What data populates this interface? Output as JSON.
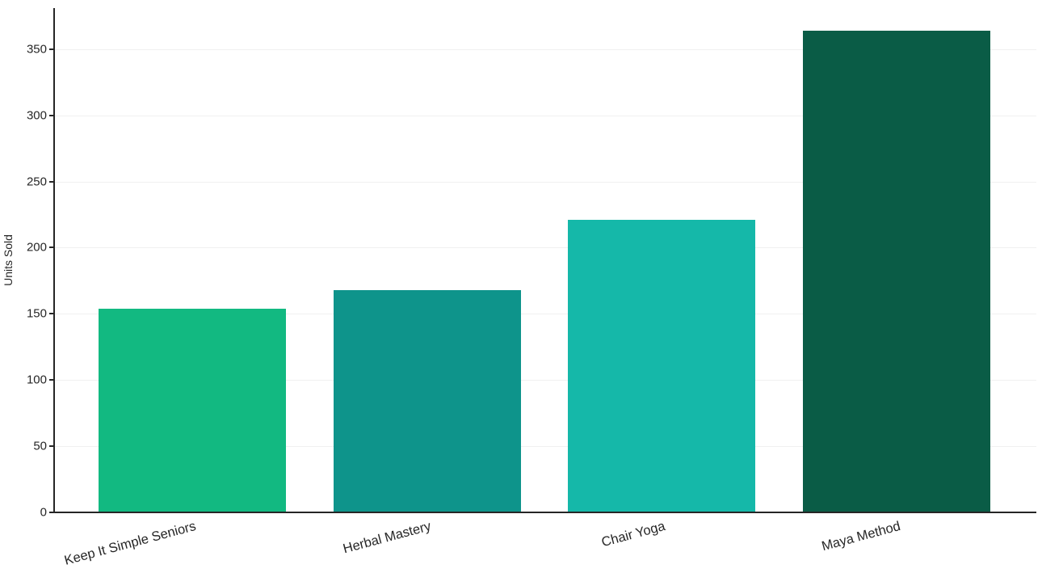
{
  "chart_data": {
    "type": "bar",
    "title": "",
    "categories": [
      "Keep It Simple Seniors",
      "Herbal Mastery",
      "Chair Yoga",
      "Maya Method"
    ],
    "values": [
      154,
      168,
      221,
      364
    ],
    "bar_colors": [
      "#12b981",
      "#0e948b",
      "#15b8a9",
      "#0a5c46"
    ],
    "xlabel": "",
    "ylabel": "Units Sold",
    "yticks": [
      0,
      50,
      100,
      150,
      200,
      250,
      300,
      350
    ],
    "ylim": [
      0,
      381
    ],
    "grid": "horizontal",
    "grid_color": "#f0f0f0",
    "axis_color": "#262626",
    "tick_label_color": "#262626",
    "background_color": "#ffffff",
    "legend_position": "none",
    "x_tick_rotation_deg": 15
  }
}
